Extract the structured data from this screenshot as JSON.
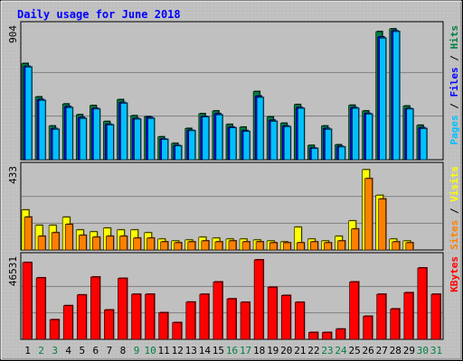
{
  "chart_data": {
    "type": "bar",
    "title": "Daily usage for June 2018",
    "categories": [
      "1",
      "2",
      "3",
      "4",
      "5",
      "6",
      "7",
      "8",
      "9",
      "10",
      "11",
      "12",
      "13",
      "14",
      "15",
      "16",
      "17",
      "18",
      "19",
      "20",
      "21",
      "22",
      "23",
      "24",
      "25",
      "26",
      "27",
      "28",
      "29",
      "30",
      "31"
    ],
    "weekend_days": [
      2,
      3,
      9,
      10,
      16,
      17,
      23,
      24,
      30,
      31
    ],
    "grid": true,
    "panels": [
      {
        "id": "hits-files-pages",
        "max_label": "904",
        "max": 904,
        "right_labels": [
          {
            "text": "Pages",
            "color": "#00c0ff"
          },
          {
            "text": " / ",
            "color": "#000000"
          },
          {
            "text": "Files",
            "color": "#0000ff"
          },
          {
            "text": " / ",
            "color": "#000000"
          },
          {
            "text": "Hits",
            "color": "#008040"
          }
        ],
        "series": [
          {
            "name": "Hits",
            "color": "#008040",
            "values": [
              665,
              434,
              233,
              385,
              311,
              374,
              264,
              415,
              304,
              298,
              158,
              113,
              216,
              318,
              337,
              244,
              225,
              471,
              296,
              252,
              381,
              99,
              233,
              103,
              376,
              337,
              885,
              904,
              371,
              238,
              0
            ]
          },
          {
            "name": "Files",
            "color": "#0000ff",
            "values": [
              645,
              416,
              215,
              367,
              292,
              355,
              245,
              395,
              285,
              292,
              143,
              98,
              203,
              298,
              318,
              225,
              201,
              439,
              273,
              233,
              360,
              81,
              216,
              91,
              360,
              320,
              848,
              890,
              354,
              221,
              0
            ]
          },
          {
            "name": "Pages",
            "color": "#00c0ff",
            "values": [
              640,
              410,
              210,
              360,
              285,
              350,
              240,
              390,
              280,
              285,
              140,
              95,
              200,
              295,
              310,
              220,
              195,
              430,
              265,
              228,
              355,
              78,
              210,
              88,
              355,
              315,
              840,
              885,
              350,
              215,
              0
            ]
          }
        ]
      },
      {
        "id": "visits-sites",
        "max_label": "433",
        "max": 433,
        "right_labels": [
          {
            "text": "Sites",
            "color": "#ff8000"
          },
          {
            "text": " / ",
            "color": "#000000"
          },
          {
            "text": "Visits",
            "color": "#ffff00"
          }
        ],
        "series": [
          {
            "name": "Visits",
            "color": "#ffff00",
            "values": [
              216,
              133,
              133,
              177,
              108,
              98,
              118,
              108,
              108,
              93,
              59,
              49,
              54,
              69,
              64,
              59,
              59,
              54,
              49,
              44,
              123,
              59,
              49,
              74,
              157,
              433,
              295,
              59,
              49,
              0,
              0
            ]
          },
          {
            "name": "Sites",
            "color": "#ff8000",
            "values": [
              177,
              74,
              93,
              138,
              79,
              69,
              74,
              74,
              64,
              64,
              44,
              39,
              44,
              49,
              44,
              49,
              44,
              44,
              39,
              39,
              39,
              44,
              39,
              49,
              113,
              385,
              275,
              44,
              39,
              0,
              0
            ]
          }
        ]
      },
      {
        "id": "kbytes",
        "max_label": "46531",
        "max": 46531,
        "right_labels": [
          {
            "text": "KBytes",
            "color": "#ff0000"
          }
        ],
        "series": [
          {
            "name": "KBytes",
            "color": "#ff0000",
            "values": [
              45000,
              36000,
              11500,
              19700,
              26000,
              36500,
              17200,
              35700,
              26400,
              26400,
              15600,
              9800,
              21800,
              26400,
              33600,
              23700,
              21700,
              46531,
              30500,
              25700,
              21700,
              4000,
              4000,
              6000,
              33600,
              13500,
              26400,
              17800,
              27300,
              41800,
              26400
            ]
          }
        ]
      }
    ]
  }
}
